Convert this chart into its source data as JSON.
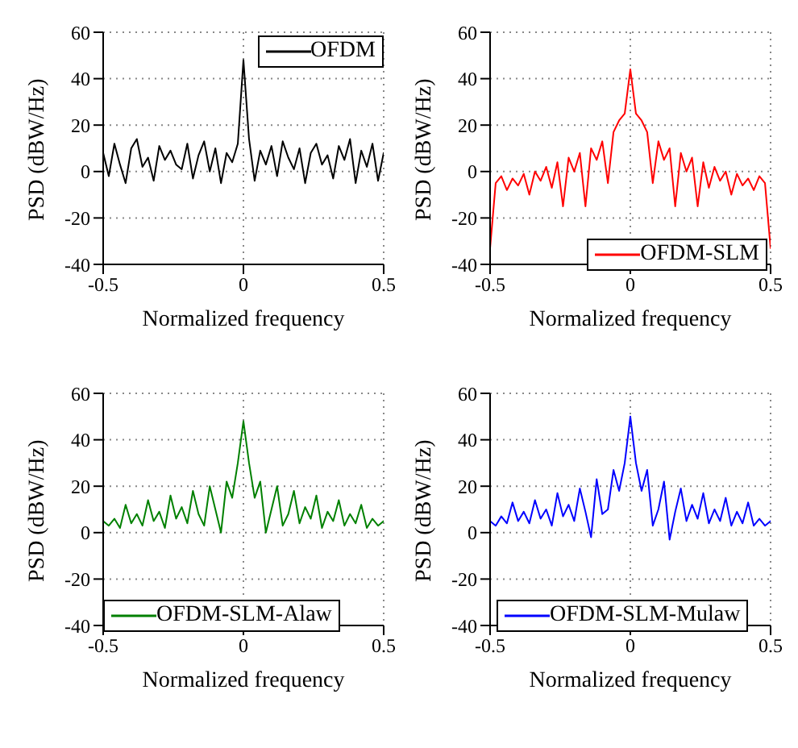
{
  "chart_data": [
    {
      "type": "line",
      "xlabel": "Normalized frequency",
      "ylabel": "PSD (dBW/Hz)",
      "xlim": [
        -0.5,
        0.5
      ],
      "xticks": [
        -0.5,
        0,
        0.5
      ],
      "ylim": [
        -40,
        60
      ],
      "yticks": [
        -40,
        -20,
        0,
        20,
        40,
        60
      ],
      "grid": true,
      "legend": "top right",
      "marker": "none",
      "line_style": "solid",
      "x": [
        -0.5,
        -0.48,
        -0.46,
        -0.44,
        -0.42,
        -0.4,
        -0.38,
        -0.36,
        -0.34,
        -0.32,
        -0.3,
        -0.28,
        -0.26,
        -0.24,
        -0.22,
        -0.2,
        -0.18,
        -0.16,
        -0.14,
        -0.12,
        -0.1,
        -0.08,
        -0.06,
        -0.04,
        -0.02,
        0,
        0.02,
        0.04,
        0.06,
        0.08,
        0.1,
        0.12,
        0.14,
        0.16,
        0.18,
        0.2,
        0.22,
        0.24,
        0.26,
        0.28,
        0.3,
        0.32,
        0.34,
        0.36,
        0.38,
        0.4,
        0.42,
        0.44,
        0.46,
        0.48,
        0.5
      ],
      "series": [
        {
          "name": "OFDM",
          "color": "#000000",
          "values": [
            8,
            -2,
            12,
            3,
            -5,
            10,
            14,
            2,
            6,
            -4,
            11,
            5,
            9,
            3,
            1,
            12,
            -3,
            7,
            13,
            0,
            10,
            -5,
            8,
            4,
            12,
            48,
            14,
            -4,
            9,
            3,
            11,
            -2,
            13,
            6,
            1,
            10,
            -5,
            8,
            12,
            3,
            7,
            -3,
            11,
            5,
            14,
            -5,
            9,
            2,
            12,
            -4,
            8
          ]
        }
      ]
    },
    {
      "type": "line",
      "xlabel": "Normalized frequency",
      "ylabel": "PSD (dBW/Hz)",
      "xlim": [
        -0.5,
        0.5
      ],
      "xticks": [
        -0.5,
        0,
        0.5
      ],
      "ylim": [
        -40,
        60
      ],
      "yticks": [
        -40,
        -20,
        0,
        20,
        40,
        60
      ],
      "grid": true,
      "legend": "bottom right",
      "marker": "none",
      "line_style": "solid",
      "x": [
        -0.5,
        -0.48,
        -0.46,
        -0.44,
        -0.42,
        -0.4,
        -0.38,
        -0.36,
        -0.34,
        -0.32,
        -0.3,
        -0.28,
        -0.26,
        -0.24,
        -0.22,
        -0.2,
        -0.18,
        -0.16,
        -0.14,
        -0.12,
        -0.1,
        -0.08,
        -0.06,
        -0.04,
        -0.02,
        0,
        0.02,
        0.04,
        0.06,
        0.08,
        0.1,
        0.12,
        0.14,
        0.16,
        0.18,
        0.2,
        0.22,
        0.24,
        0.26,
        0.28,
        0.3,
        0.32,
        0.34,
        0.36,
        0.38,
        0.4,
        0.42,
        0.44,
        0.46,
        0.48,
        0.5
      ],
      "series": [
        {
          "name": "OFDM-SLM",
          "color": "#ff0000",
          "values": [
            -33,
            -5,
            -2,
            -8,
            -3,
            -6,
            -1,
            -10,
            0,
            -4,
            2,
            -7,
            4,
            -15,
            6,
            0,
            8,
            -15,
            10,
            5,
            13,
            -5,
            17,
            22,
            25,
            44,
            25,
            22,
            17,
            -5,
            13,
            5,
            10,
            -15,
            8,
            0,
            6,
            -15,
            4,
            -7,
            2,
            -4,
            0,
            -10,
            -1,
            -6,
            -3,
            -8,
            -2,
            -5,
            -33
          ]
        }
      ]
    },
    {
      "type": "line",
      "xlabel": "Normalized frequency",
      "ylabel": "PSD (dBW/Hz)",
      "xlim": [
        -0.5,
        0.5
      ],
      "xticks": [
        -0.5,
        0,
        0.5
      ],
      "ylim": [
        -40,
        60
      ],
      "yticks": [
        -40,
        -20,
        0,
        20,
        40,
        60
      ],
      "grid": true,
      "legend": "bottom left",
      "marker": "none",
      "line_style": "solid",
      "x": [
        -0.5,
        -0.48,
        -0.46,
        -0.44,
        -0.42,
        -0.4,
        -0.38,
        -0.36,
        -0.34,
        -0.32,
        -0.3,
        -0.28,
        -0.26,
        -0.24,
        -0.22,
        -0.2,
        -0.18,
        -0.16,
        -0.14,
        -0.12,
        -0.1,
        -0.08,
        -0.06,
        -0.04,
        -0.02,
        0,
        0.02,
        0.04,
        0.06,
        0.08,
        0.1,
        0.12,
        0.14,
        0.16,
        0.18,
        0.2,
        0.22,
        0.24,
        0.26,
        0.28,
        0.3,
        0.32,
        0.34,
        0.36,
        0.38,
        0.4,
        0.42,
        0.44,
        0.46,
        0.48,
        0.5
      ],
      "series": [
        {
          "name": "OFDM-SLM-Alaw",
          "color": "#008000",
          "values": [
            5,
            3,
            6,
            2,
            12,
            4,
            8,
            3,
            14,
            5,
            9,
            2,
            16,
            6,
            11,
            4,
            18,
            8,
            3,
            20,
            10,
            0,
            22,
            15,
            30,
            48,
            30,
            15,
            22,
            0,
            10,
            20,
            3,
            8,
            18,
            4,
            11,
            6,
            16,
            2,
            9,
            5,
            14,
            3,
            8,
            4,
            12,
            2,
            6,
            3,
            5
          ]
        }
      ]
    },
    {
      "type": "line",
      "xlabel": "Normalized frequency",
      "ylabel": "PSD (dBW/Hz)",
      "xlim": [
        -0.5,
        0.5
      ],
      "xticks": [
        -0.5,
        0,
        0.5
      ],
      "ylim": [
        -40,
        60
      ],
      "yticks": [
        -40,
        -20,
        0,
        20,
        40,
        60
      ],
      "grid": true,
      "legend": "bottom",
      "marker": "none",
      "line_style": "solid",
      "x": [
        -0.5,
        -0.48,
        -0.46,
        -0.44,
        -0.42,
        -0.4,
        -0.38,
        -0.36,
        -0.34,
        -0.32,
        -0.3,
        -0.28,
        -0.26,
        -0.24,
        -0.22,
        -0.2,
        -0.18,
        -0.16,
        -0.14,
        -0.12,
        -0.1,
        -0.08,
        -0.06,
        -0.04,
        -0.02,
        0,
        0.02,
        0.04,
        0.06,
        0.08,
        0.1,
        0.12,
        0.14,
        0.16,
        0.18,
        0.2,
        0.22,
        0.24,
        0.26,
        0.28,
        0.3,
        0.32,
        0.34,
        0.36,
        0.38,
        0.4,
        0.42,
        0.44,
        0.46,
        0.48,
        0.5
      ],
      "series": [
        {
          "name": "OFDM-SLM-Mulaw",
          "color": "#0000ff",
          "values": [
            5,
            3,
            7,
            4,
            13,
            5,
            9,
            4,
            14,
            6,
            10,
            3,
            17,
            7,
            12,
            5,
            19,
            9,
            -2,
            23,
            8,
            10,
            27,
            18,
            30,
            50,
            30,
            18,
            27,
            3,
            10,
            22,
            -3,
            9,
            19,
            5,
            12,
            6,
            17,
            4,
            10,
            5,
            15,
            3,
            9,
            4,
            13,
            3,
            6,
            3,
            5
          ]
        }
      ]
    }
  ]
}
